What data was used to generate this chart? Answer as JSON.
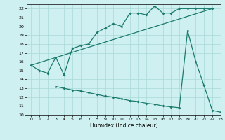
{
  "xlabel": "Humidex (Indice chaleur)",
  "bg_color": "#cff0f0",
  "grid_color": "#a8d8d8",
  "line_color": "#1a7a6e",
  "xlim": [
    -0.5,
    23
  ],
  "ylim": [
    10,
    22.5
  ],
  "xticks": [
    0,
    1,
    2,
    3,
    4,
    5,
    6,
    7,
    8,
    9,
    10,
    11,
    12,
    13,
    14,
    15,
    16,
    17,
    18,
    19,
    20,
    21,
    22,
    23
  ],
  "yticks": [
    10,
    11,
    12,
    13,
    14,
    15,
    16,
    17,
    18,
    19,
    20,
    21,
    22
  ],
  "line1_x": [
    0,
    1,
    2,
    3,
    4,
    5,
    6,
    7,
    8,
    9,
    10,
    11,
    12,
    13,
    14,
    15,
    16,
    17,
    18,
    19,
    20,
    21,
    22
  ],
  "line1_y": [
    15.6,
    15.0,
    14.7,
    16.5,
    14.5,
    17.5,
    17.8,
    18.0,
    19.3,
    19.8,
    20.3,
    20.0,
    21.5,
    21.5,
    21.3,
    22.3,
    21.5,
    21.5,
    22.0,
    22.0,
    22.0,
    22.0,
    22.0
  ],
  "line2_x": [
    0,
    22
  ],
  "line2_y": [
    15.6,
    22.0
  ],
  "line3_x": [
    3,
    4,
    5,
    6,
    7,
    8,
    9,
    10,
    11,
    12,
    13,
    14,
    15,
    16,
    17,
    18,
    19,
    20,
    21,
    22,
    23
  ],
  "line3_y": [
    13.2,
    13.0,
    12.8,
    12.7,
    12.5,
    12.3,
    12.1,
    12.0,
    11.8,
    11.6,
    11.5,
    11.3,
    11.2,
    11.0,
    10.9,
    10.8,
    19.5,
    16.0,
    13.3,
    10.5,
    10.3
  ]
}
